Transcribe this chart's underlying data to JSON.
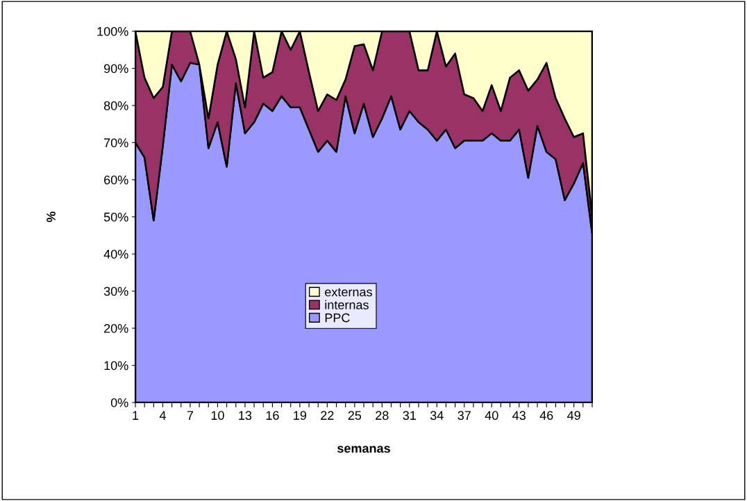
{
  "chart_data": {
    "type": "area",
    "stacked": true,
    "xlabel": "semanas",
    "ylabel": "%",
    "categories": [
      "1",
      null,
      null,
      "4",
      null,
      null,
      "7",
      null,
      null,
      "10",
      null,
      null,
      "13",
      null,
      null,
      "16",
      null,
      null,
      "19",
      null,
      null,
      "22",
      null,
      null,
      "25",
      null,
      null,
      "28",
      null,
      null,
      "31",
      null,
      null,
      "34",
      null,
      null,
      "37",
      null,
      null,
      "40",
      null,
      null,
      "43",
      null,
      null,
      "46",
      null,
      null,
      "49",
      null,
      null
    ],
    "series": [
      {
        "name": "PPC",
        "color": "#9999ff",
        "values": [
          70,
          66,
          49,
          69,
          91,
          86.5,
          91.5,
          91,
          68.5,
          75.5,
          63.5,
          86,
          72.5,
          75.5,
          80.5,
          78.5,
          82.5,
          79.5,
          79.5,
          73.5,
          67.5,
          70.5,
          67.5,
          82.5,
          72.5,
          80.5,
          71.5,
          76.5,
          82.5,
          73.5,
          78.5,
          75.5,
          73.5,
          70.5,
          73.5,
          68.5,
          70.5,
          70.5,
          70.5,
          72.5,
          70.5,
          70.5,
          73.5,
          60.5,
          74.5,
          67.5,
          65.5,
          54.5,
          59,
          64.5,
          45.5
        ]
      },
      {
        "name": "internas",
        "color": "#993366",
        "values": [
          30,
          21.5,
          33,
          16,
          9,
          13.5,
          8.5,
          0,
          8,
          15.5,
          36.5,
          6.5,
          7,
          24.5,
          7,
          10.5,
          17.5,
          15.5,
          20.5,
          15.5,
          11,
          12.5,
          14,
          4.5,
          23.5,
          16,
          18,
          23.5,
          17.5,
          26.5,
          21.5,
          14,
          16,
          29.5,
          17,
          25.5,
          12.5,
          11.5,
          8,
          13,
          8,
          17,
          16,
          23.5,
          12.5,
          24,
          16.5,
          22,
          12.5,
          8,
          4.5
        ]
      },
      {
        "name": "externas",
        "color": "#ffffcc",
        "values": [
          0,
          12.5,
          18,
          15,
          0,
          0,
          0,
          9,
          23.5,
          9,
          0,
          7.5,
          20.5,
          0,
          12.5,
          11,
          0,
          5,
          0,
          11,
          21.5,
          17,
          18.5,
          13,
          4,
          3.5,
          10.5,
          0,
          0,
          0,
          0,
          10.5,
          10.5,
          0,
          9.5,
          6,
          17,
          18,
          21.5,
          14.5,
          21.5,
          12.5,
          10.5,
          16,
          13,
          8.5,
          18,
          23.5,
          28.5,
          27.5,
          50
        ]
      }
    ],
    "ylim": [
      0,
      100
    ],
    "yticks": [
      {
        "value": 0,
        "label": "0%"
      },
      {
        "value": 10,
        "label": "10%"
      },
      {
        "value": 20,
        "label": "20%"
      },
      {
        "value": 30,
        "label": "30%"
      },
      {
        "value": 40,
        "label": "40%"
      },
      {
        "value": 50,
        "label": "50%"
      },
      {
        "value": 60,
        "label": "60%"
      },
      {
        "value": 70,
        "label": "70%"
      },
      {
        "value": 80,
        "label": "80%"
      },
      {
        "value": 90,
        "label": "90%"
      },
      {
        "value": 100,
        "label": "100%"
      }
    ],
    "grid": false,
    "legend": "center"
  }
}
